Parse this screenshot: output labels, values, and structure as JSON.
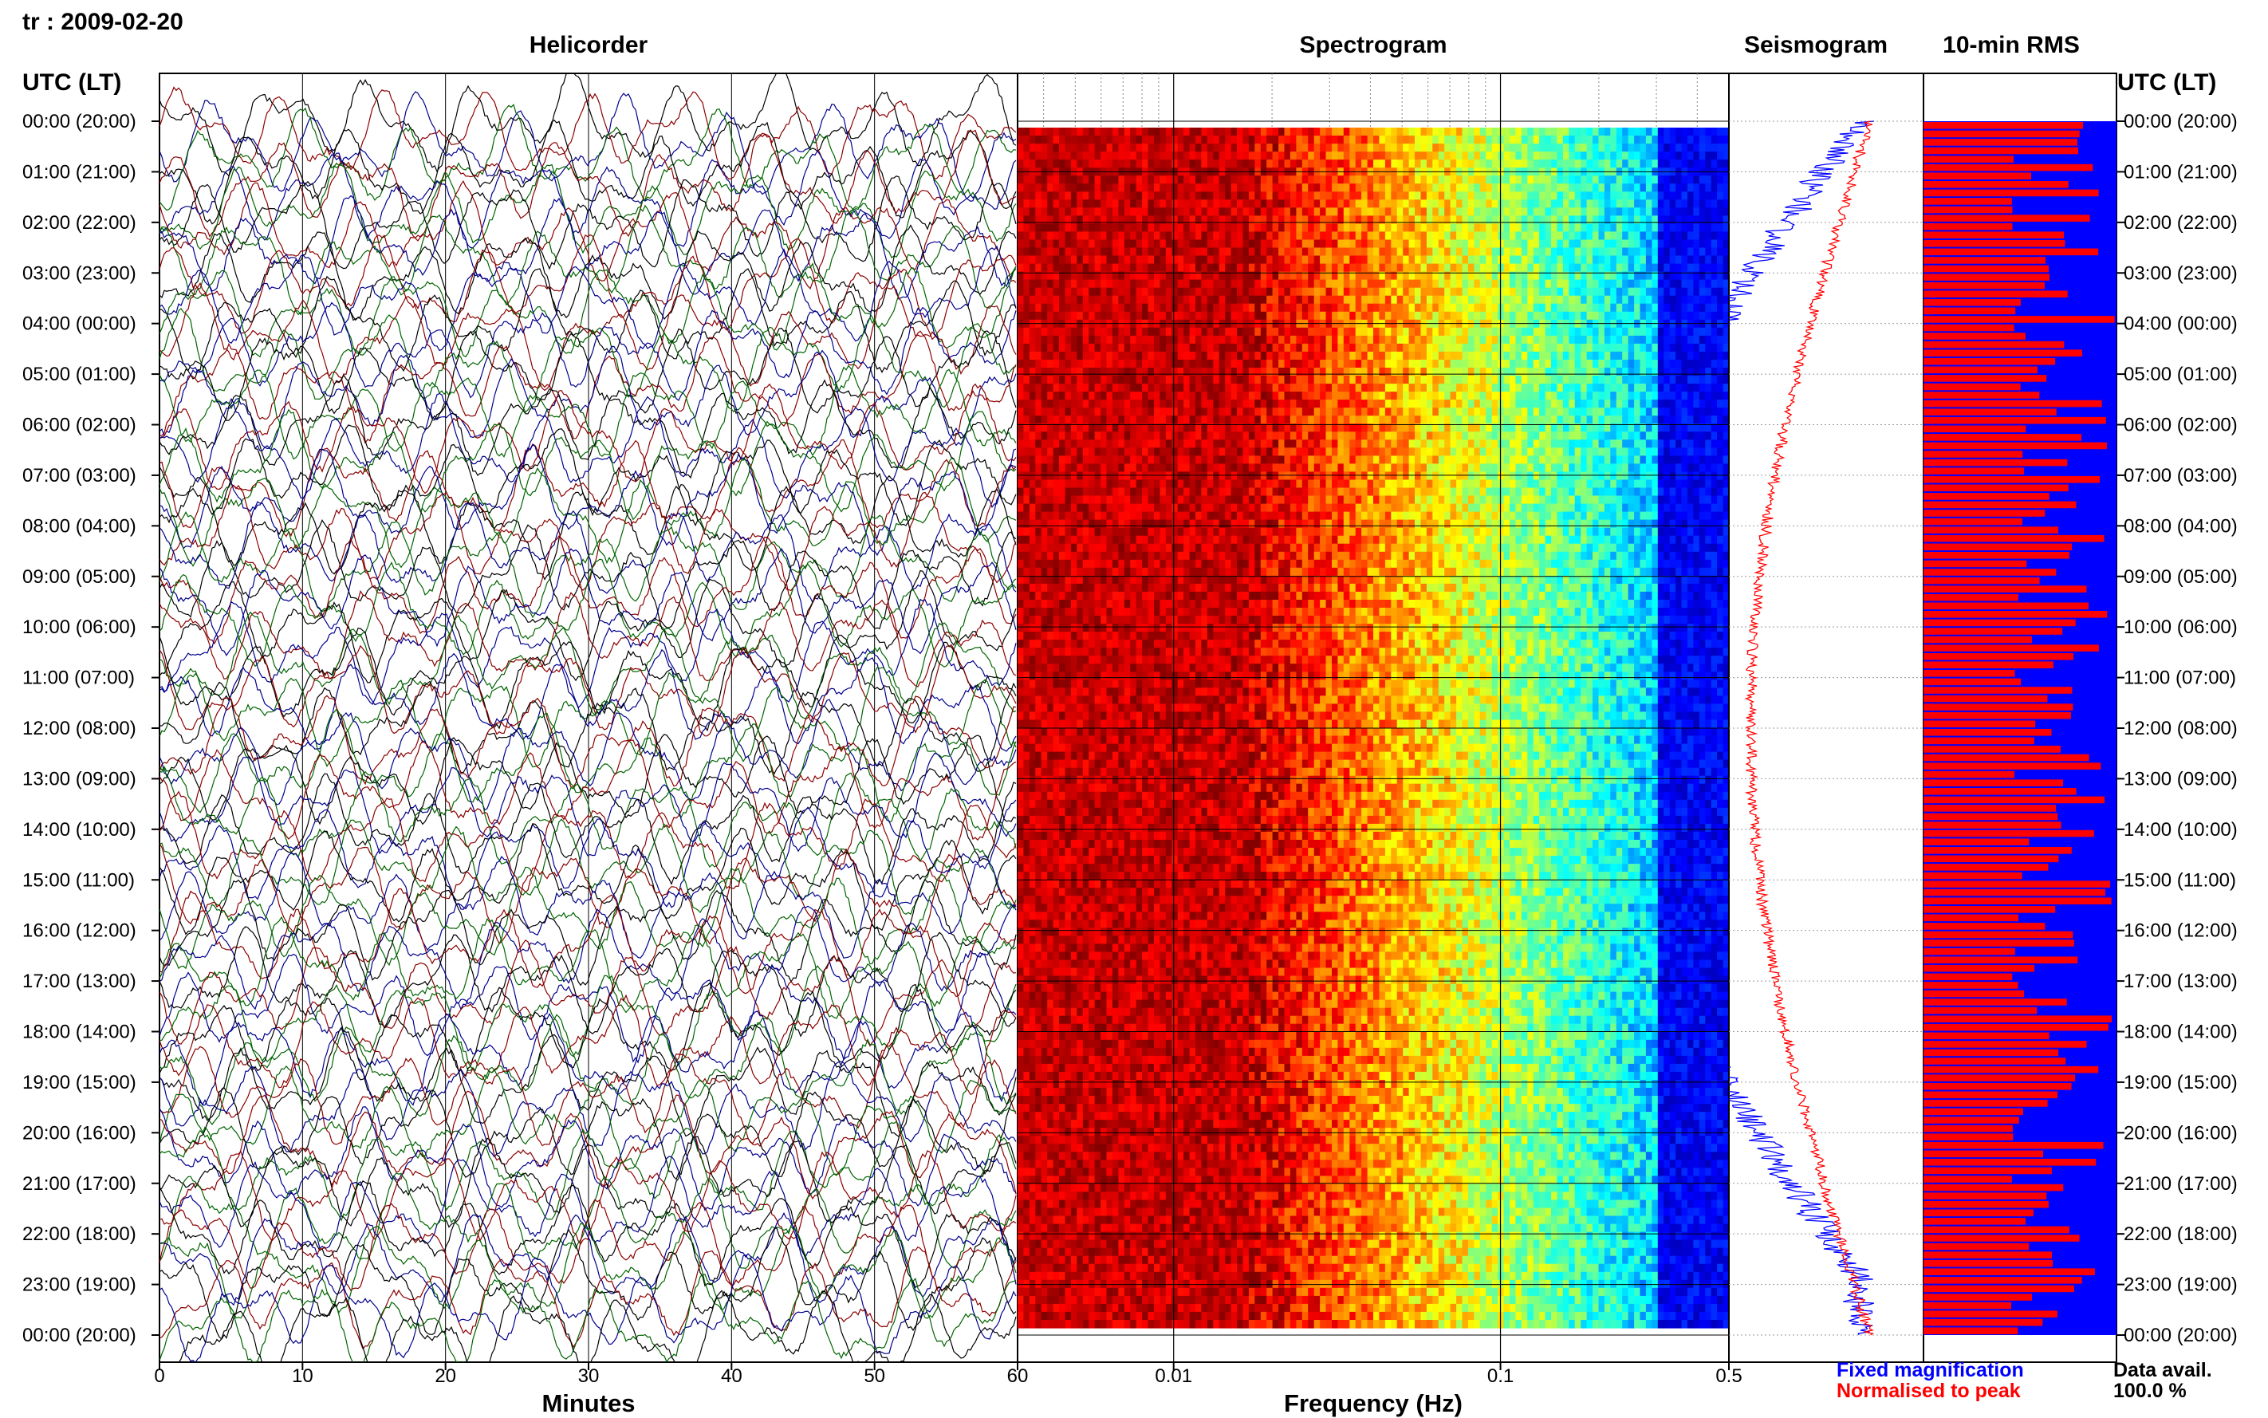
{
  "page": {
    "station_label": "tr : 2009-02-20",
    "data_avail_label": "Data avail.",
    "data_avail_value": "100.0 %"
  },
  "chart_data": [
    {
      "type": "line",
      "title": "Helicorder",
      "xlabel": "Minutes",
      "ylabel": "UTC (LT)",
      "xlim": [
        0,
        60
      ],
      "x_ticks": [
        "0",
        "10",
        "20",
        "30",
        "40",
        "50",
        "60"
      ],
      "row_labels": [
        "00:00 (20:00)",
        "01:00 (21:00)",
        "02:00 (22:00)",
        "03:00 (23:00)",
        "04:00 (00:00)",
        "05:00 (01:00)",
        "06:00 (02:00)",
        "07:00 (03:00)",
        "08:00 (04:00)",
        "09:00 (05:00)",
        "10:00 (06:00)",
        "11:00 (07:00)",
        "12:00 (08:00)",
        "13:00 (09:00)",
        "14:00 (10:00)",
        "15:00 (11:00)",
        "16:00 (12:00)",
        "17:00 (13:00)",
        "18:00 (14:00)",
        "19:00 (15:00)",
        "20:00 (16:00)",
        "21:00 (17:00)",
        "22:00 (18:00)",
        "23:00 (19:00)",
        "00:00 (20:00)"
      ],
      "trace_colors": [
        "#000000",
        "#8b0000",
        "#00008b",
        "#006400"
      ]
    },
    {
      "type": "heatmap",
      "title": "Spectrogram",
      "xlabel": "Frequency (Hz)",
      "x_scale": "log",
      "xlim": [
        0.00333,
        0.5
      ],
      "x_ticks": [
        "60",
        "0.01",
        "0.1",
        "0.5"
      ],
      "colormap": "jet"
    },
    {
      "type": "line",
      "title": "Seismogram",
      "series": [
        {
          "name": "Fixed magnification",
          "color": "#0000ff"
        },
        {
          "name": "Normalised to peak",
          "color": "#ff0000"
        }
      ]
    },
    {
      "type": "bar",
      "title": "10-min RMS",
      "bar_color": "#ff0000",
      "background_color": "#0000ff",
      "right_labels": [
        "UTC (LT)"
      ]
    }
  ]
}
